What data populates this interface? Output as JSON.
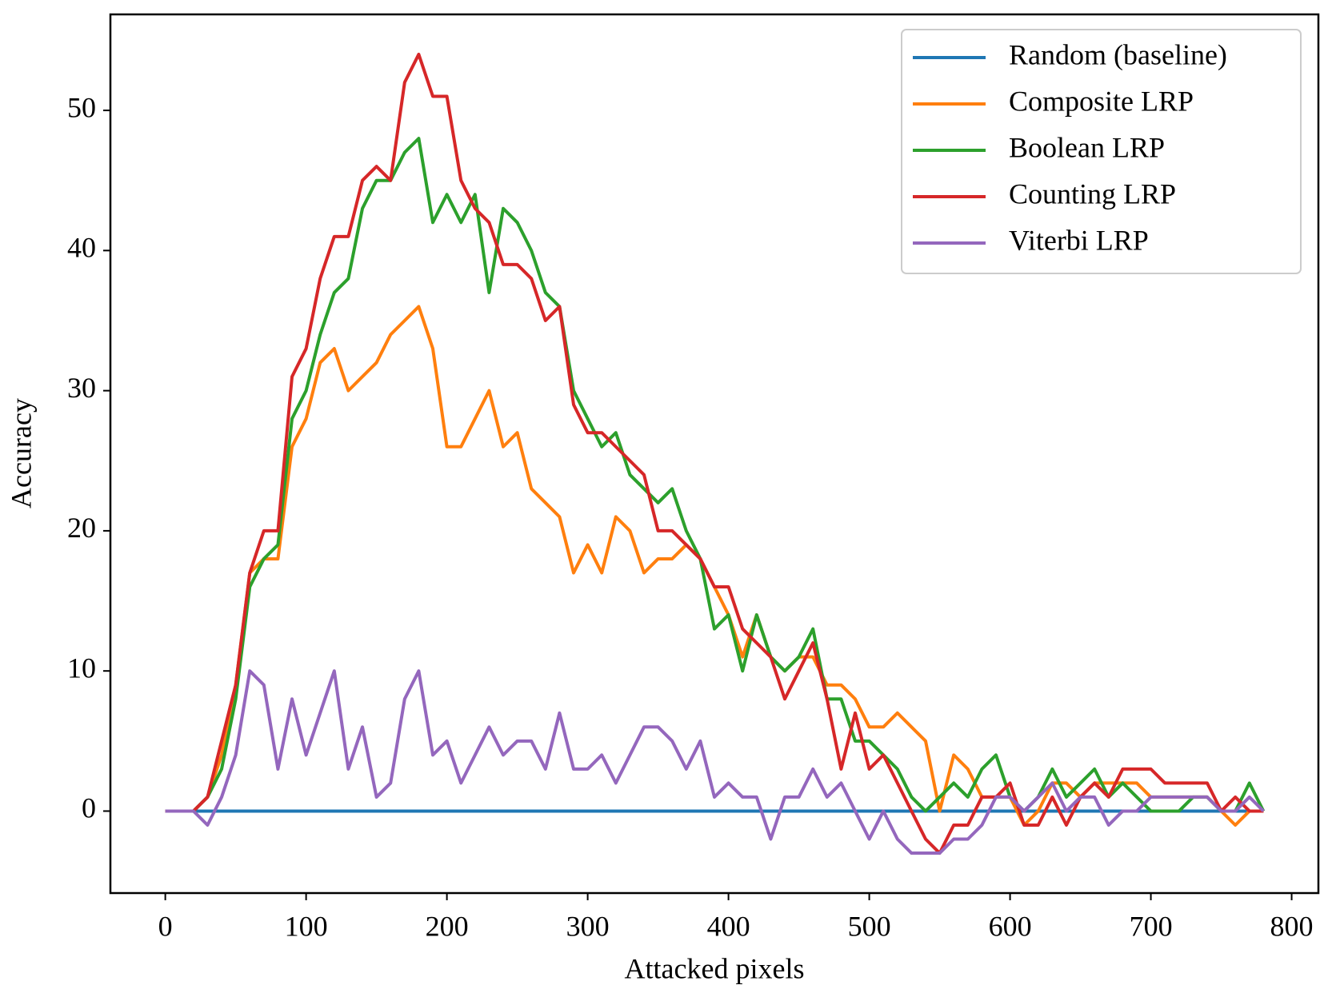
{
  "chart_data": {
    "type": "line",
    "x_label": "Attacked pixels",
    "y_label": "Accuracy",
    "x": [
      0,
      10,
      20,
      30,
      40,
      50,
      60,
      70,
      80,
      90,
      100,
      110,
      120,
      130,
      140,
      150,
      160,
      170,
      180,
      190,
      200,
      210,
      220,
      230,
      240,
      250,
      260,
      270,
      280,
      290,
      300,
      310,
      320,
      330,
      340,
      350,
      360,
      370,
      380,
      390,
      400,
      410,
      420,
      430,
      440,
      450,
      460,
      470,
      480,
      490,
      500,
      510,
      520,
      530,
      540,
      550,
      560,
      570,
      580,
      590,
      600,
      610,
      620,
      630,
      640,
      650,
      660,
      670,
      680,
      690,
      700,
      710,
      720,
      730,
      740,
      750,
      760,
      770,
      780
    ],
    "series": [
      {
        "name": "Random (baseline)",
        "color": "#1f77b4",
        "values": [
          0,
          0,
          0,
          0,
          0,
          0,
          0,
          0,
          0,
          0,
          0,
          0,
          0,
          0,
          0,
          0,
          0,
          0,
          0,
          0,
          0,
          0,
          0,
          0,
          0,
          0,
          0,
          0,
          0,
          0,
          0,
          0,
          0,
          0,
          0,
          0,
          0,
          0,
          0,
          0,
          0,
          0,
          0,
          0,
          0,
          0,
          0,
          0,
          0,
          0,
          0,
          0,
          0,
          0,
          0,
          0,
          0,
          0,
          0,
          0,
          0,
          0,
          0,
          0,
          0,
          0,
          0,
          0,
          0,
          0,
          0,
          0,
          0,
          0,
          0,
          0,
          0,
          0,
          0
        ]
      },
      {
        "name": "Composite LRP",
        "color": "#ff7f0e",
        "values": [
          0,
          0,
          0,
          1,
          4,
          9,
          17,
          18,
          18,
          26,
          28,
          32,
          33,
          30,
          31,
          32,
          34,
          35,
          36,
          33,
          26,
          26,
          28,
          30,
          26,
          27,
          23,
          22,
          21,
          17,
          19,
          17,
          21,
          20,
          17,
          18,
          18,
          19,
          18,
          16,
          14,
          11,
          14,
          11,
          10,
          11,
          11,
          9,
          9,
          8,
          6,
          6,
          7,
          6,
          5,
          0,
          4,
          3,
          1,
          1,
          1,
          -1,
          0,
          2,
          2,
          1,
          2,
          2,
          2,
          2,
          1,
          1,
          1,
          1,
          1,
          0,
          -1,
          0,
          0
        ]
      },
      {
        "name": "Boolean LRP",
        "color": "#2ca02c",
        "values": [
          0,
          0,
          0,
          1,
          3,
          8,
          16,
          18,
          19,
          28,
          30,
          34,
          37,
          38,
          43,
          45,
          45,
          47,
          48,
          42,
          44,
          42,
          44,
          37,
          43,
          42,
          40,
          37,
          36,
          30,
          28,
          26,
          27,
          24,
          23,
          22,
          23,
          20,
          18,
          13,
          14,
          10,
          14,
          11,
          10,
          11,
          13,
          8,
          8,
          5,
          5,
          4,
          3,
          1,
          0,
          1,
          2,
          1,
          3,
          4,
          1,
          0,
          1,
          3,
          1,
          2,
          3,
          1,
          2,
          1,
          0,
          0,
          0,
          1,
          1,
          0,
          0,
          2,
          0
        ]
      },
      {
        "name": "Counting LRP",
        "color": "#d62728",
        "values": [
          0,
          0,
          0,
          1,
          5,
          9,
          17,
          20,
          20,
          31,
          33,
          38,
          41,
          41,
          45,
          46,
          45,
          52,
          54,
          51,
          51,
          45,
          43,
          42,
          39,
          39,
          38,
          35,
          36,
          29,
          27,
          27,
          26,
          25,
          24,
          20,
          20,
          19,
          18,
          16,
          16,
          13,
          12,
          11,
          8,
          10,
          12,
          8,
          3,
          7,
          3,
          4,
          2,
          0,
          -2,
          -3,
          -1,
          -1,
          1,
          1,
          2,
          -1,
          -1,
          1,
          -1,
          1,
          2,
          1,
          3,
          3,
          3,
          2,
          2,
          2,
          2,
          0,
          1,
          0,
          0
        ]
      },
      {
        "name": "Viterbi LRP",
        "color": "#9467bd",
        "values": [
          0,
          0,
          0,
          -1,
          1,
          4,
          10,
          9,
          3,
          8,
          4,
          7,
          10,
          3,
          6,
          1,
          2,
          8,
          10,
          4,
          5,
          2,
          4,
          6,
          4,
          5,
          5,
          3,
          7,
          3,
          3,
          4,
          2,
          4,
          6,
          6,
          5,
          3,
          5,
          1,
          2,
          1,
          1,
          -2,
          1,
          1,
          3,
          1,
          2,
          0,
          -2,
          0,
          -2,
          -3,
          -3,
          -3,
          -2,
          -2,
          -1,
          1,
          1,
          0,
          1,
          2,
          0,
          1,
          1,
          -1,
          0,
          0,
          1,
          1,
          1,
          1,
          1,
          0,
          0,
          1,
          0
        ]
      }
    ],
    "xlim": [
      -39,
      819
    ],
    "ylim": [
      -5.85,
      56.85
    ],
    "xticks": [
      0,
      100,
      200,
      300,
      400,
      500,
      600,
      700,
      800
    ],
    "yticks": [
      0,
      10,
      20,
      30,
      40,
      50
    ],
    "legend": "upper right"
  }
}
